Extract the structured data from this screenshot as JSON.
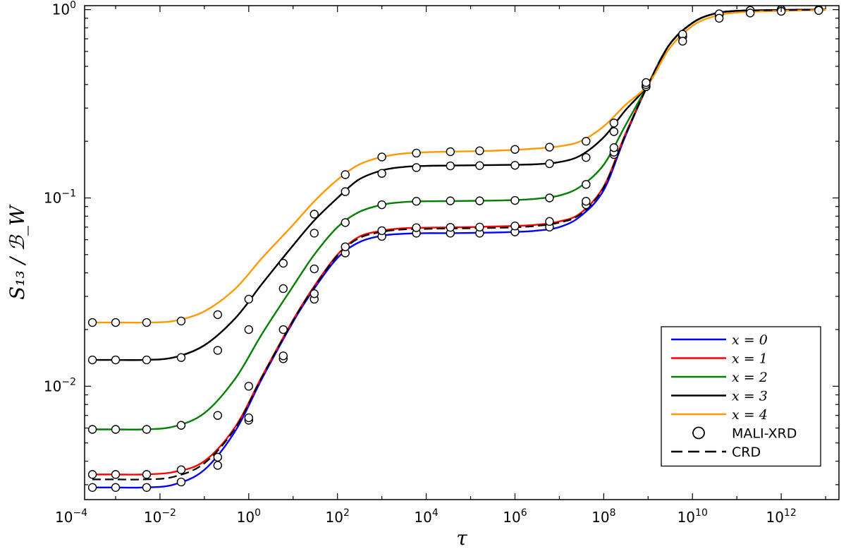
{
  "chart_data": {
    "type": "line",
    "xlabel": "τ",
    "ylabel": "S₁₃ / ℬ_W",
    "xscale": "log",
    "yscale": "log",
    "xlim": [
      0.0002,
      20000000000000
    ],
    "ylim": [
      0.0025,
      1.05
    ],
    "x_ticks": [
      {
        "base": "10",
        "exp": "−4"
      },
      {
        "base": "10",
        "exp": "−2"
      },
      {
        "base": "10",
        "exp": "0"
      },
      {
        "base": "10",
        "exp": "2"
      },
      {
        "base": "10",
        "exp": "4"
      },
      {
        "base": "10",
        "exp": "6"
      },
      {
        "base": "10",
        "exp": "8"
      },
      {
        "base": "10",
        "exp": "10"
      },
      {
        "base": "10",
        "exp": "12"
      }
    ],
    "x_tick_values": [
      0.0001,
      0.01,
      1,
      100,
      10000,
      1000000,
      100000000,
      10000000000,
      1000000000000
    ],
    "y_ticks": [
      {
        "base": "10",
        "exp": "−2",
        "value": 0.01
      },
      {
        "base": "10",
        "exp": "−1",
        "value": 0.1
      },
      {
        "base": "10",
        "exp": "0",
        "value": 1
      }
    ],
    "grid": false,
    "legend_position": "bottom-right",
    "x": [
      0.0003,
      0.001,
      0.004,
      0.02,
      0.1,
      0.5,
      2,
      10,
      30,
      100,
      300,
      1000,
      3000,
      10000,
      30000,
      100000,
      300000,
      1000000,
      3000000,
      10000000,
      30000000,
      100000000,
      300000000,
      1000000000,
      3000000000,
      10000000000,
      30000000000,
      100000000000,
      1000000000000,
      10000000000000
    ],
    "markers_x": [
      0.0003,
      0.001,
      0.005,
      0.03,
      0.2,
      1,
      6,
      30,
      150,
      1000,
      6000,
      35000,
      160000,
      1000000,
      6000000,
      40000000,
      170000000,
      900000000,
      6000000000,
      40000000000,
      200000000000,
      1000000000000,
      7000000000000
    ],
    "series": [
      {
        "name": "x = 0",
        "color": "#0000ff",
        "values": [
          0.0029,
          0.0029,
          0.0029,
          0.003,
          0.0036,
          0.0058,
          0.011,
          0.022,
          0.033,
          0.048,
          0.058,
          0.063,
          0.0645,
          0.065,
          0.065,
          0.0652,
          0.0655,
          0.066,
          0.067,
          0.07,
          0.08,
          0.11,
          0.21,
          0.4,
          0.65,
          0.85,
          0.95,
          0.985,
          0.995,
          1.0
        ],
        "markers": [
          0.0029,
          0.0029,
          0.0029,
          0.0031,
          0.0038,
          0.0066,
          0.014,
          0.029,
          0.051,
          0.0625,
          0.065,
          0.065,
          0.065,
          0.066,
          0.07,
          0.092,
          0.17,
          0.39,
          0.72,
          0.94,
          0.99,
          1.0,
          1.0
        ]
      },
      {
        "name": "x = 1",
        "color": "#ff0000",
        "values": [
          0.0034,
          0.0034,
          0.0034,
          0.0035,
          0.004,
          0.0061,
          0.0113,
          0.0225,
          0.034,
          0.05,
          0.062,
          0.067,
          0.069,
          0.0695,
          0.0697,
          0.07,
          0.0705,
          0.071,
          0.072,
          0.075,
          0.083,
          0.115,
          0.215,
          0.4,
          0.65,
          0.85,
          0.95,
          0.985,
          0.995,
          1.0
        ],
        "markers": [
          0.0034,
          0.0034,
          0.0034,
          0.0036,
          0.0042,
          0.0068,
          0.0145,
          0.031,
          0.055,
          0.067,
          0.0695,
          0.0698,
          0.07,
          0.071,
          0.075,
          0.096,
          0.175,
          0.39,
          0.72,
          0.94,
          0.99,
          1.0,
          1.0
        ]
      },
      {
        "name": "x = 2",
        "color": "#008000",
        "values": [
          0.0059,
          0.0059,
          0.0059,
          0.0061,
          0.0072,
          0.011,
          0.019,
          0.034,
          0.05,
          0.07,
          0.084,
          0.092,
          0.095,
          0.096,
          0.0962,
          0.0965,
          0.0968,
          0.0975,
          0.099,
          0.103,
          0.115,
          0.15,
          0.24,
          0.4,
          0.65,
          0.85,
          0.95,
          0.985,
          0.995,
          1.0
        ],
        "markers": [
          0.0059,
          0.0059,
          0.0059,
          0.0062,
          0.007,
          0.01,
          0.02,
          0.042,
          0.074,
          0.092,
          0.096,
          0.0965,
          0.0965,
          0.097,
          0.1,
          0.118,
          0.185,
          0.39,
          0.72,
          0.94,
          0.99,
          1.0,
          1.0
        ]
      },
      {
        "name": "x = 3",
        "color": "#000000",
        "values": [
          0.0138,
          0.0138,
          0.0138,
          0.0142,
          0.0165,
          0.023,
          0.035,
          0.056,
          0.076,
          0.1,
          0.125,
          0.14,
          0.146,
          0.148,
          0.1485,
          0.149,
          0.1495,
          0.15,
          0.151,
          0.155,
          0.168,
          0.21,
          0.29,
          0.4,
          0.65,
          0.85,
          0.95,
          0.985,
          0.995,
          1.0
        ],
        "markers": [
          0.0138,
          0.0138,
          0.0138,
          0.0142,
          0.0155,
          0.02,
          0.033,
          0.065,
          0.108,
          0.135,
          0.145,
          0.148,
          0.1485,
          0.149,
          0.152,
          0.164,
          0.225,
          0.4,
          0.74,
          0.95,
          0.99,
          1.0,
          1.0
        ]
      },
      {
        "name": "x = 4",
        "color": "#ff9900",
        "values": [
          0.0218,
          0.0218,
          0.0218,
          0.0222,
          0.025,
          0.033,
          0.048,
          0.072,
          0.096,
          0.125,
          0.15,
          0.165,
          0.172,
          0.175,
          0.176,
          0.177,
          0.178,
          0.18,
          0.183,
          0.188,
          0.2,
          0.24,
          0.31,
          0.4,
          0.62,
          0.82,
          0.92,
          0.965,
          0.985,
          0.995
        ],
        "markers": [
          0.0218,
          0.0218,
          0.0218,
          0.0222,
          0.024,
          0.029,
          0.045,
          0.082,
          0.133,
          0.165,
          0.173,
          0.176,
          0.178,
          0.181,
          0.186,
          0.2,
          0.25,
          0.41,
          0.68,
          0.9,
          0.96,
          0.98,
          0.99
        ]
      }
    ],
    "dashed_series": {
      "name": "CRD",
      "color": "#000000",
      "values": [
        0.0032,
        0.0032,
        0.0032,
        0.0033,
        0.0039,
        0.006,
        0.0112,
        0.0223,
        0.0336,
        0.0495,
        0.061,
        0.066,
        0.068,
        0.0685,
        0.0688,
        0.069,
        0.0693,
        0.0698,
        0.071,
        0.074,
        0.082,
        0.114,
        0.213,
        0.4,
        0.65,
        0.85,
        0.95,
        0.985,
        0.995,
        1.0
      ]
    },
    "legend": [
      {
        "label": "x = 0",
        "kind": "line",
        "color": "#0000ff",
        "math": true
      },
      {
        "label": "x = 1",
        "kind": "line",
        "color": "#ff0000",
        "math": true
      },
      {
        "label": "x = 2",
        "kind": "line",
        "color": "#008000",
        "math": true
      },
      {
        "label": "x = 3",
        "kind": "line",
        "color": "#000000",
        "math": true
      },
      {
        "label": "x = 4",
        "kind": "line",
        "color": "#ff9900",
        "math": true
      },
      {
        "label": "MALI-XRD",
        "kind": "marker",
        "color": "#000000",
        "math": false
      },
      {
        "label": "CRD",
        "kind": "dashed",
        "color": "#000000",
        "math": false
      }
    ]
  }
}
